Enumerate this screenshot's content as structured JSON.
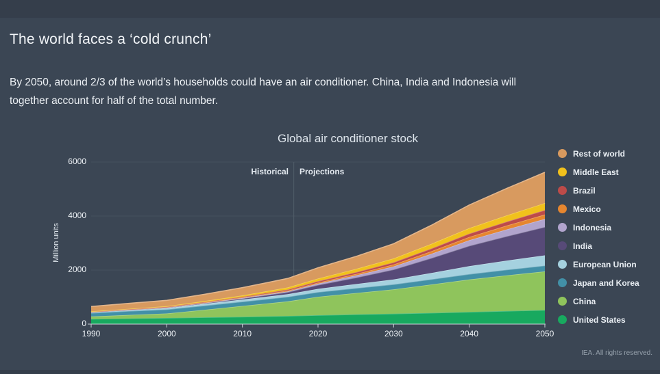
{
  "page": {
    "title": "The world faces a ‘cold crunch’",
    "subtitle": "By 2050, around 2/3 of the world’s households could have an air conditioner. China, India and Indonesia will together account for half of the total number.",
    "footer": "IEA. All rights reserved.",
    "colors": {
      "background": "#3b4654",
      "grid": "#46525e",
      "divider": "#525e6a",
      "axis": "#cdd4da"
    }
  },
  "chart_data": {
    "type": "area",
    "stacked": true,
    "title": "Global air conditioner stock",
    "ylabel": "Million units",
    "legend_position": "right",
    "annotations": {
      "historical": "Historical",
      "projections": "Projections",
      "divider_year": 2016.8
    },
    "x": [
      1990,
      1995,
      2000,
      2005,
      2010,
      2016,
      2020,
      2025,
      2030,
      2035,
      2040,
      2045,
      2050
    ],
    "x_ticks": [
      1990,
      2000,
      2010,
      2020,
      2030,
      2040,
      2050
    ],
    "y_ticks": [
      0,
      2000,
      4000,
      6000
    ],
    "xlim": [
      1990,
      2050
    ],
    "ylim": [
      0,
      6000
    ],
    "series": [
      {
        "name": "Rest of world",
        "color": "#d89a5f",
        "values": [
          180,
          200,
          215,
          250,
          290,
          335,
          400,
          465,
          545,
          690,
          855,
          1000,
          1140
        ]
      },
      {
        "name": "Middle East",
        "color": "#f1c11c",
        "values": [
          10,
          17,
          25,
          36,
          50,
          78,
          100,
          120,
          145,
          175,
          205,
          232,
          260
        ]
      },
      {
        "name": "Brazil",
        "color": "#bd4b49",
        "values": [
          7,
          9,
          12,
          18,
          25,
          38,
          52,
          65,
          80,
          100,
          125,
          145,
          165
        ]
      },
      {
        "name": "Mexico",
        "color": "#e6862f",
        "values": [
          5,
          7,
          10,
          14,
          20,
          30,
          40,
          55,
          70,
          95,
          120,
          143,
          165
        ]
      },
      {
        "name": "Indonesia",
        "color": "#b1a4cd",
        "values": [
          3,
          5,
          8,
          11,
          15,
          28,
          50,
          80,
          115,
          160,
          210,
          255,
          295
        ]
      },
      {
        "name": "India",
        "color": "#574a78",
        "values": [
          5,
          9,
          15,
          25,
          40,
          72,
          140,
          240,
          370,
          550,
          750,
          900,
          1050
        ]
      },
      {
        "name": "European Union",
        "color": "#a5d1df",
        "values": [
          30,
          40,
          50,
          65,
          80,
          100,
          120,
          150,
          180,
          235,
          295,
          340,
          380
        ]
      },
      {
        "name": "Japan and Korea",
        "color": "#4290a7",
        "values": [
          130,
          140,
          150,
          155,
          160,
          170,
          175,
          180,
          185,
          192,
          200,
          207,
          215
        ]
      },
      {
        "name": "China",
        "color": "#8fc45c",
        "values": [
          90,
          130,
          165,
          280,
          400,
          540,
          680,
          790,
          900,
          1050,
          1200,
          1320,
          1430
        ]
      },
      {
        "name": "United States",
        "color": "#18a95f",
        "values": [
          190,
          210,
          228,
          250,
          270,
          300,
          330,
          360,
          385,
          415,
          450,
          485,
          520
        ]
      }
    ]
  }
}
